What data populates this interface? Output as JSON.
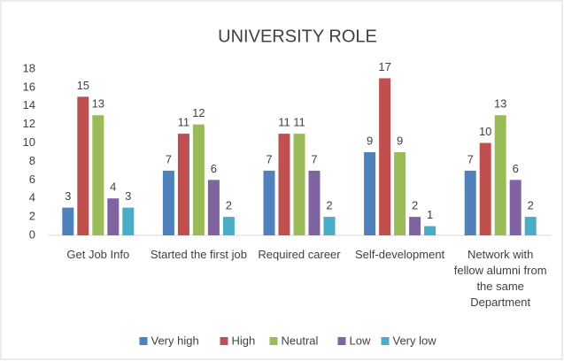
{
  "chart_data": {
    "type": "bar",
    "title": "UNIVERSITY ROLE",
    "categories": [
      "Get Job Info",
      "Started the first job",
      "Required career",
      "Self-development",
      "Network with fellow alumni from the same Department"
    ],
    "series": [
      {
        "name": "Very high",
        "color": "#4f81bd",
        "values": [
          3,
          7,
          7,
          9,
          7
        ]
      },
      {
        "name": "High",
        "color": "#c0504d",
        "values": [
          15,
          11,
          11,
          17,
          10
        ]
      },
      {
        "name": "Neutral",
        "color": "#9bbb59",
        "values": [
          13,
          12,
          11,
          9,
          13
        ]
      },
      {
        "name": "Low",
        "color": "#8064a2",
        "values": [
          4,
          6,
          7,
          2,
          6
        ]
      },
      {
        "name": "Very low",
        "color": "#4bacc6",
        "values": [
          3,
          2,
          2,
          1,
          2
        ]
      }
    ],
    "ylim": [
      0,
      18
    ],
    "yticks": [
      0,
      2,
      4,
      6,
      8,
      10,
      12,
      14,
      16,
      18
    ],
    "grid": false,
    "legend": "bottom"
  }
}
